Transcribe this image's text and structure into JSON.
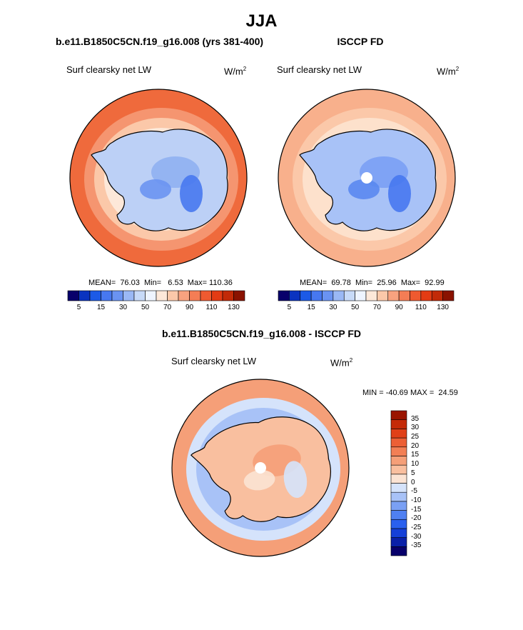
{
  "figure": {
    "title": "JJA",
    "diff_title": "b.e11.B1850C5CN.f19_g16.008 - ISCCP FD"
  },
  "panels": [
    {
      "case_title": "b.e11.B1850C5CN.f19_g16.008 (yrs 381-400)",
      "variable": "Surf clearsky net LW",
      "units_base": "W/m",
      "units_exp": "2",
      "stats_text": "MEAN=  76.03  Min=   6.53  Max= 110.36",
      "stats": {
        "mean": 76.03,
        "min": 6.53,
        "max": 110.36
      }
    },
    {
      "case_title": "ISCCP FD",
      "variable": "Surf clearsky net LW",
      "units_base": "W/m",
      "units_exp": "2",
      "stats_text": "MEAN=  69.78  Min=  25.96  Max=  92.99",
      "stats": {
        "mean": 69.78,
        "min": 25.96,
        "max": 92.99
      }
    }
  ],
  "diff_panel": {
    "variable": "Surf clearsky net LW",
    "units_base": "W/m",
    "units_exp": "2",
    "stats_text": "MIN = -40.69 MAX =  24.59",
    "stats": {
      "min": -40.69,
      "max": 24.59
    }
  },
  "colorbar_abs": {
    "colors": [
      "#08006b",
      "#0a33c0",
      "#1c5ae6",
      "#4778f0",
      "#6a93f2",
      "#9ab8f5",
      "#c7daf8",
      "#eef4ff",
      "#fde8d9",
      "#fbc8a9",
      "#f8a27f",
      "#f47d55",
      "#ef5a30",
      "#e33b14",
      "#c22a08",
      "#8a1200"
    ],
    "tick_labels": [
      "5",
      "15",
      "30",
      "50",
      "70",
      "90",
      "110",
      "130"
    ]
  },
  "colorbar_diff": {
    "colors": [
      "#08006b",
      "#0a20a8",
      "#1540d8",
      "#2a60ee",
      "#4f80f2",
      "#7aa0f4",
      "#a8c2f7",
      "#d5e3fb",
      "#fbe3d3",
      "#f9bf9f",
      "#f59f78",
      "#f27f55",
      "#ec5f35",
      "#e04018",
      "#c42a08",
      "#9a1400"
    ],
    "tick_labels": [
      "35",
      "30",
      "25",
      "20",
      "15",
      "10",
      "5",
      "0",
      "-5",
      "-10",
      "-15",
      "-20",
      "-25",
      "-30",
      "-35"
    ]
  },
  "maps": [
    {
      "ocean_color": "#ef6a3c",
      "ring_colors": [
        "#f59570",
        "#fbc8a9",
        "#fde8d9"
      ],
      "land_color": "#bcd0f6",
      "land_patches": [
        "#8fb0f2",
        "#6a93f2",
        "#4778f0"
      ],
      "pole_hole": false
    },
    {
      "ocean_color": "#f8b08c",
      "ring_colors": [
        "#fbc8a9",
        "#fde1cc"
      ],
      "land_color": "#a8c2f7",
      "land_patches": [
        "#7aa0f4",
        "#5a88ef",
        "#4778f0"
      ],
      "pole_hole": true
    },
    {
      "ocean_color": "#f59f78",
      "ring_colors": [
        "#d5e3fb",
        "#a8c2f7"
      ],
      "land_color": "#f9bf9f",
      "land_patches": [
        "#f59f78",
        "#fbe3d3",
        "#d5e3fb"
      ],
      "pole_hole": true
    }
  ]
}
